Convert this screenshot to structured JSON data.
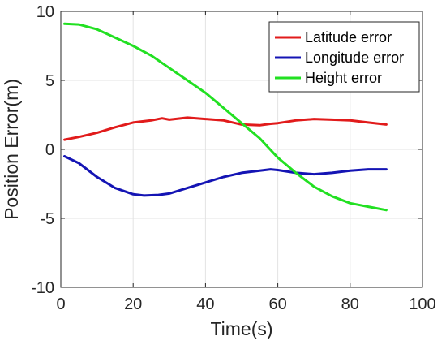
{
  "chart_data": {
    "type": "line",
    "xlabel": "Time(s)",
    "ylabel": "Position Error(m)",
    "xlim": [
      0,
      100
    ],
    "ylim": [
      -10,
      10
    ],
    "x_ticks": [
      0,
      20,
      40,
      60,
      80,
      100
    ],
    "y_ticks": [
      -10,
      -5,
      0,
      5,
      10
    ],
    "x_tick_labels": [
      "0",
      "20",
      "40",
      "60",
      "80",
      "100"
    ],
    "y_tick_labels": [
      "-10",
      "-5",
      "0",
      "5",
      "10"
    ],
    "grid": true,
    "legend_position": "top-right",
    "series": [
      {
        "name": "Latitude error",
        "color": "#e11b1b",
        "x": [
          1,
          5,
          10,
          15,
          20,
          25,
          28,
          30,
          35,
          40,
          45,
          50,
          55,
          58,
          60,
          65,
          70,
          75,
          80,
          85,
          90
        ],
        "y": [
          0.7,
          0.9,
          1.2,
          1.6,
          1.95,
          2.1,
          2.25,
          2.15,
          2.3,
          2.2,
          2.1,
          1.8,
          1.75,
          1.85,
          1.9,
          2.1,
          2.2,
          2.15,
          2.1,
          1.95,
          1.8
        ]
      },
      {
        "name": "Longitude error",
        "color": "#1414b4",
        "x": [
          1,
          5,
          10,
          15,
          20,
          23,
          27,
          30,
          35,
          40,
          45,
          50,
          55,
          58,
          60,
          65,
          70,
          75,
          80,
          85,
          90
        ],
        "y": [
          -0.5,
          -1.0,
          -2.0,
          -2.8,
          -3.25,
          -3.35,
          -3.3,
          -3.2,
          -2.8,
          -2.4,
          -2.0,
          -1.7,
          -1.55,
          -1.45,
          -1.5,
          -1.7,
          -1.8,
          -1.7,
          -1.55,
          -1.45,
          -1.45
        ]
      },
      {
        "name": "Height error",
        "color": "#22e022",
        "x": [
          1,
          5,
          10,
          15,
          20,
          25,
          30,
          35,
          40,
          45,
          50,
          55,
          60,
          65,
          70,
          75,
          80,
          85,
          90
        ],
        "y": [
          9.1,
          9.05,
          8.7,
          8.1,
          7.5,
          6.8,
          5.9,
          5.0,
          4.1,
          3.0,
          1.9,
          0.8,
          -0.6,
          -1.7,
          -2.7,
          -3.4,
          -3.9,
          -4.15,
          -4.4
        ]
      }
    ]
  }
}
